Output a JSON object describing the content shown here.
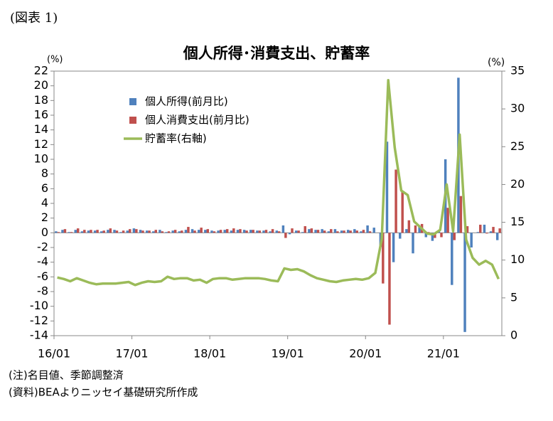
{
  "figure_label": "(図表 1)",
  "notes": [
    "(注)名目値、季節調整済",
    "(資料)BEAよりニッセイ基礎研究所作成"
  ],
  "chart_data": {
    "type": "bar-line",
    "title": "個人所得･消費支出、貯蓄率",
    "y_label": "(%)",
    "y2_label": "(%)",
    "categories": [
      "16/01",
      null,
      null,
      null,
      null,
      null,
      null,
      null,
      null,
      null,
      null,
      null,
      "17/01",
      null,
      null,
      null,
      null,
      null,
      null,
      null,
      null,
      null,
      null,
      null,
      "18/01",
      null,
      null,
      null,
      null,
      null,
      null,
      null,
      null,
      null,
      null,
      null,
      "19/01",
      null,
      null,
      null,
      null,
      null,
      null,
      null,
      null,
      null,
      null,
      null,
      "20/01",
      null,
      null,
      null,
      null,
      null,
      null,
      null,
      null,
      null,
      null,
      null,
      "21/01",
      null,
      null,
      null,
      null,
      null,
      null,
      null,
      null
    ],
    "ylim": [
      -14,
      22
    ],
    "yticks": [
      -14,
      -12,
      -10,
      -8,
      -6,
      -4,
      -2,
      0,
      2,
      4,
      6,
      8,
      10,
      12,
      14,
      16,
      18,
      20,
      22
    ],
    "y2lim": [
      0,
      35
    ],
    "y2ticks": [
      0,
      5,
      10,
      15,
      20,
      25,
      30,
      35
    ],
    "series": [
      {
        "name": "個人所得(前月比)",
        "color": "#4f81bd",
        "kind": "bar",
        "values": [
          0.2,
          0.4,
          0.1,
          0.4,
          0.2,
          0.3,
          0.3,
          0.2,
          0.4,
          0.4,
          0.1,
          0.3,
          0.6,
          0.4,
          0.3,
          0.2,
          0.4,
          0.1,
          0.3,
          0.2,
          0.4,
          0.5,
          0.4,
          0.4,
          0.3,
          0.3,
          0.4,
          0.3,
          0.4,
          0.4,
          0.4,
          0.3,
          0.3,
          0.2,
          0.3,
          1.0,
          -0.2,
          0.3,
          0.1,
          0.5,
          0.4,
          0.5,
          0.2,
          0.5,
          0.3,
          0.4,
          0.5,
          0.2,
          1.0,
          0.7,
          -1.9,
          12.4,
          -4.0,
          -0.8,
          0.5,
          -2.8,
          0.9,
          -0.6,
          -1.1,
          0.3,
          10.0,
          -7.1,
          21.1,
          -13.5,
          -2.0,
          0.1,
          1.1,
          0.2,
          -1.0
        ]
      },
      {
        "name": "個人消費支出(前月比)",
        "color": "#c0504d",
        "kind": "bar",
        "values": [
          0.1,
          0.5,
          0.1,
          0.6,
          0.4,
          0.4,
          0.4,
          0.3,
          0.6,
          0.3,
          0.3,
          0.5,
          0.5,
          0.3,
          0.3,
          0.4,
          0.2,
          0.2,
          0.4,
          0.3,
          0.8,
          0.3,
          0.7,
          0.5,
          0.2,
          0.4,
          0.5,
          0.6,
          0.5,
          0.3,
          0.4,
          0.3,
          0.4,
          0.5,
          0.2,
          -0.7,
          0.6,
          0.3,
          0.9,
          0.6,
          0.4,
          0.3,
          0.5,
          0.2,
          0.3,
          0.3,
          0.3,
          0.4,
          0.2,
          0.0,
          -6.9,
          -12.5,
          8.6,
          5.6,
          1.7,
          1.0,
          1.2,
          0.1,
          -0.7,
          -0.6,
          3.4,
          -1.0,
          5.0,
          0.9,
          0.0,
          1.1,
          -0.1,
          0.8,
          0.6
        ]
      },
      {
        "name": "貯蓄率(右軸)",
        "color": "#9bbb59",
        "kind": "line",
        "axis": "y2",
        "values": [
          7.7,
          7.5,
          7.2,
          7.6,
          7.3,
          7.0,
          6.8,
          6.9,
          6.9,
          6.9,
          7.0,
          7.1,
          6.7,
          7.0,
          7.2,
          7.1,
          7.2,
          7.8,
          7.5,
          7.6,
          7.6,
          7.3,
          7.4,
          7.0,
          7.5,
          7.6,
          7.6,
          7.4,
          7.5,
          7.6,
          7.6,
          7.6,
          7.5,
          7.3,
          7.2,
          8.9,
          8.7,
          8.8,
          8.5,
          8.0,
          7.6,
          7.4,
          7.2,
          7.1,
          7.3,
          7.4,
          7.5,
          7.4,
          7.6,
          8.3,
          12.8,
          33.8,
          24.9,
          19.2,
          18.6,
          15.1,
          14.3,
          13.5,
          13.4,
          14.0,
          20.0,
          13.8,
          26.6,
          12.7,
          10.3,
          9.4,
          9.9,
          9.4,
          7.5
        ]
      }
    ]
  }
}
